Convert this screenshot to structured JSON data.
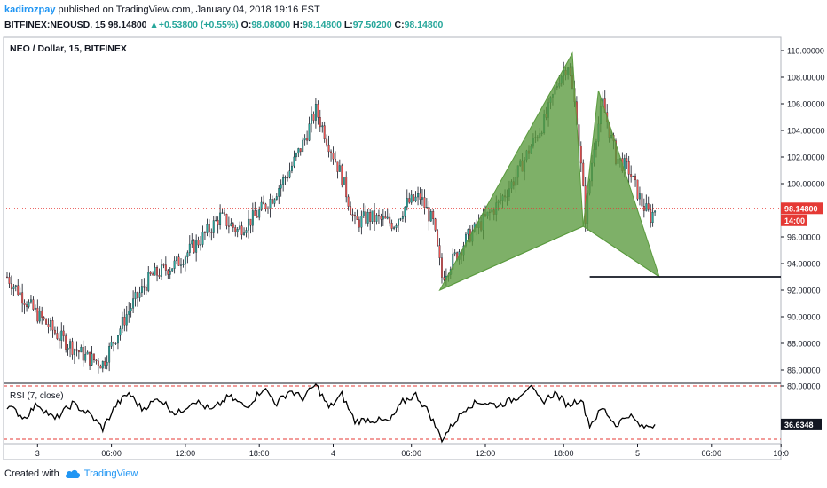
{
  "header": {
    "author": "kadirozpay",
    "published": " published on TradingView.com, January 04, 2018 19:16 EST",
    "symbol": "BITFINEX:NEOUSD, 15",
    "last": "98.14800",
    "change": "+0.53800 (+0.55%)",
    "o_label": "O:",
    "o": "98.08000",
    "h_label": "H:",
    "h": "98.14800",
    "l_label": "L:",
    "l": "97.50200",
    "c_label": "C:",
    "c": "98.14800"
  },
  "footer": {
    "created": "Created with",
    "brand": "TradingView"
  },
  "colors": {
    "up": "#26a69a",
    "down": "#ef5350",
    "pattern": "#5a9a3e",
    "price_line": "#e53935",
    "rsi": "#000000"
  },
  "chart_data": [
    {
      "type": "candlestick",
      "title": "NEO / Dollar, 15, BITFINEX",
      "y_ticks": [
        "110.00000",
        "108.00000",
        "106.00000",
        "104.00000",
        "102.00000",
        "100.00000",
        "98.00000",
        "96.00000",
        "94.00000",
        "92.00000",
        "90.00000",
        "88.00000",
        "86.00000"
      ],
      "ylim": [
        85,
        111
      ],
      "x_ticks": [
        "3",
        "06:00",
        "12:00",
        "18:00",
        "4",
        "06:00",
        "12:00",
        "18:00",
        "5",
        "06:00",
        "10:0"
      ],
      "last_price_label": "98.14800",
      "countdown_label": "14:00",
      "last_price": 98.148,
      "horizontal_level": 93.0,
      "anchors": [
        {
          "t": 0,
          "p": 93.0
        },
        {
          "t": 12,
          "p": 90.5
        },
        {
          "t": 24,
          "p": 88.5
        },
        {
          "t": 36,
          "p": 87.0
        },
        {
          "t": 44,
          "p": 86.5
        },
        {
          "t": 56,
          "p": 90.5
        },
        {
          "t": 66,
          "p": 93.0
        },
        {
          "t": 78,
          "p": 94.0
        },
        {
          "t": 90,
          "p": 96.0
        },
        {
          "t": 98,
          "p": 97.5
        },
        {
          "t": 106,
          "p": 96.5
        },
        {
          "t": 114,
          "p": 97.5
        },
        {
          "t": 122,
          "p": 99.0
        },
        {
          "t": 130,
          "p": 101.0
        },
        {
          "t": 136,
          "p": 103.0
        },
        {
          "t": 142,
          "p": 105.5
        },
        {
          "t": 148,
          "p": 103.0
        },
        {
          "t": 154,
          "p": 100.5
        },
        {
          "t": 160,
          "p": 97.0
        },
        {
          "t": 166,
          "p": 97.5
        },
        {
          "t": 178,
          "p": 97.0
        },
        {
          "t": 184,
          "p": 98.5
        },
        {
          "t": 190,
          "p": 99.0
        },
        {
          "t": 196,
          "p": 97.0
        },
        {
          "t": 200,
          "p": 93.0
        },
        {
          "t": 206,
          "p": 94.5
        },
        {
          "t": 212,
          "p": 96.0
        },
        {
          "t": 218,
          "p": 97.0
        },
        {
          "t": 226,
          "p": 98.5
        },
        {
          "t": 234,
          "p": 100.5
        },
        {
          "t": 240,
          "p": 102.5
        },
        {
          "t": 248,
          "p": 105.0
        },
        {
          "t": 254,
          "p": 108.0
        },
        {
          "t": 258,
          "p": 109.0
        },
        {
          "t": 262,
          "p": 105.0
        },
        {
          "t": 266,
          "p": 97.5
        },
        {
          "t": 270,
          "p": 103.0
        },
        {
          "t": 274,
          "p": 106.0
        },
        {
          "t": 280,
          "p": 102.0
        },
        {
          "t": 286,
          "p": 101.0
        },
        {
          "t": 292,
          "p": 98.5
        },
        {
          "t": 296,
          "p": 97.5
        },
        {
          "t": 298,
          "p": 98.1
        }
      ],
      "pattern": {
        "name": "harmonic",
        "points": [
          {
            "t": 199,
            "p": 92.0
          },
          {
            "t": 260,
            "p": 109.8
          },
          {
            "t": 265,
            "p": 96.8
          },
          {
            "t": 272,
            "p": 107.0
          },
          {
            "t": 300,
            "p": 93.0
          }
        ]
      }
    },
    {
      "type": "line",
      "title": "RSI (7, close)",
      "y_ticks": [
        "80.00000"
      ],
      "last_value_label": "36.6348",
      "ylim": [
        15,
        83
      ],
      "bands": [
        80,
        20
      ],
      "anchors": [
        {
          "t": 0,
          "p": 58
        },
        {
          "t": 8,
          "p": 44
        },
        {
          "t": 14,
          "p": 60
        },
        {
          "t": 22,
          "p": 42
        },
        {
          "t": 30,
          "p": 60
        },
        {
          "t": 38,
          "p": 48
        },
        {
          "t": 44,
          "p": 32
        },
        {
          "t": 50,
          "p": 58
        },
        {
          "t": 56,
          "p": 72
        },
        {
          "t": 62,
          "p": 54
        },
        {
          "t": 70,
          "p": 66
        },
        {
          "t": 78,
          "p": 48
        },
        {
          "t": 86,
          "p": 64
        },
        {
          "t": 94,
          "p": 52
        },
        {
          "t": 102,
          "p": 68
        },
        {
          "t": 110,
          "p": 56
        },
        {
          "t": 118,
          "p": 78
        },
        {
          "t": 124,
          "p": 60
        },
        {
          "t": 130,
          "p": 75
        },
        {
          "t": 136,
          "p": 66
        },
        {
          "t": 142,
          "p": 82
        },
        {
          "t": 148,
          "p": 55
        },
        {
          "t": 154,
          "p": 70
        },
        {
          "t": 160,
          "p": 40
        },
        {
          "t": 166,
          "p": 42
        },
        {
          "t": 176,
          "p": 40
        },
        {
          "t": 182,
          "p": 62
        },
        {
          "t": 188,
          "p": 70
        },
        {
          "t": 194,
          "p": 50
        },
        {
          "t": 200,
          "p": 20
        },
        {
          "t": 206,
          "p": 40
        },
        {
          "t": 212,
          "p": 58
        },
        {
          "t": 218,
          "p": 62
        },
        {
          "t": 226,
          "p": 58
        },
        {
          "t": 234,
          "p": 66
        },
        {
          "t": 240,
          "p": 80
        },
        {
          "t": 246,
          "p": 62
        },
        {
          "t": 252,
          "p": 72
        },
        {
          "t": 258,
          "p": 58
        },
        {
          "t": 264,
          "p": 66
        },
        {
          "t": 268,
          "p": 36
        },
        {
          "t": 274,
          "p": 55
        },
        {
          "t": 280,
          "p": 36
        },
        {
          "t": 286,
          "p": 48
        },
        {
          "t": 292,
          "p": 33
        },
        {
          "t": 298,
          "p": 36.6
        }
      ]
    }
  ]
}
